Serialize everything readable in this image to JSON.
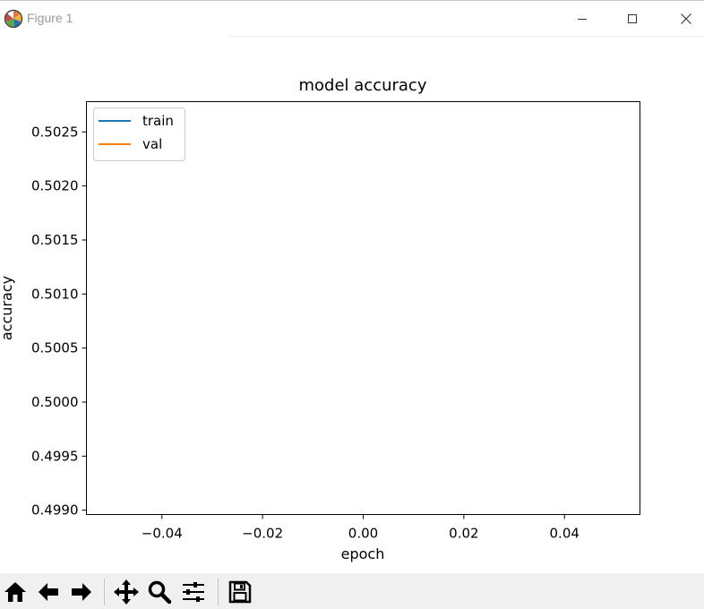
{
  "window": {
    "title": "Figure 1",
    "icon": "matplotlib-icon",
    "controls": [
      "minimize-icon",
      "maximize-icon",
      "close-icon"
    ]
  },
  "toolbar": {
    "buttons": [
      "home-icon",
      "back-arrow-icon",
      "forward-arrow-icon",
      "pan-icon",
      "zoom-icon",
      "configure-subplots-icon",
      "save-icon"
    ]
  },
  "chart_data": {
    "type": "line",
    "title": "model accuracy",
    "xlabel": "epoch",
    "ylabel": "accuracy",
    "xlim": [
      -0.055,
      0.055
    ],
    "ylim": [
      0.49896,
      0.50278
    ],
    "xticks": [
      -0.04,
      -0.02,
      0.0,
      0.02,
      0.04
    ],
    "xtick_labels": [
      "−0.04",
      "−0.02",
      "0.00",
      "0.02",
      "0.04"
    ],
    "yticks": [
      0.499,
      0.4995,
      0.5,
      0.5005,
      0.501,
      0.5015,
      0.502,
      0.5025
    ],
    "ytick_labels": [
      "0.4990",
      "0.4995",
      "0.5000",
      "0.5005",
      "0.5010",
      "0.5015",
      "0.5020",
      "0.5025"
    ],
    "grid": false,
    "legend_position": "upper left",
    "series": [
      {
        "name": "train",
        "color": "#1f77b4",
        "x": [],
        "values": []
      },
      {
        "name": "val",
        "color": "#ff7f0e",
        "x": [],
        "values": []
      }
    ]
  }
}
